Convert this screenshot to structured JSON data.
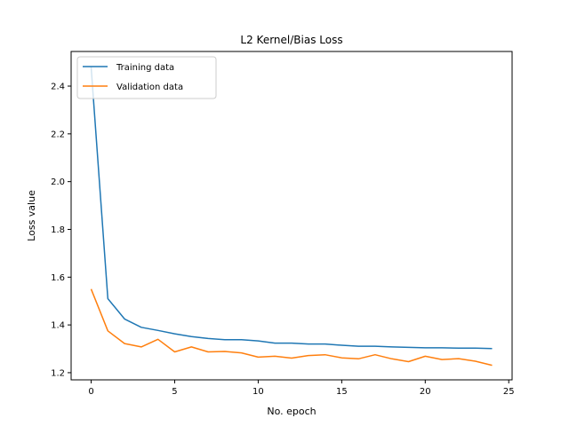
{
  "chart_data": {
    "type": "line",
    "title": "L2 Kernel/Bias Loss",
    "xlabel": "No. epoch",
    "ylabel": "Loss value",
    "xlim": [
      -1.2,
      25.2
    ],
    "ylim": [
      1.17,
      2.545
    ],
    "xticks": [
      0,
      5,
      10,
      15,
      20,
      25
    ],
    "yticks": [
      1.2,
      1.4,
      1.6,
      1.8,
      2.0,
      2.2,
      2.4
    ],
    "ytick_labels": [
      "1.2",
      "1.4",
      "1.6",
      "1.8",
      "2.0",
      "2.2",
      "2.4"
    ],
    "grid": false,
    "legend_position": "top-left",
    "x": [
      0,
      1,
      2,
      3,
      4,
      5,
      6,
      7,
      8,
      9,
      10,
      11,
      12,
      13,
      14,
      15,
      16,
      17,
      18,
      19,
      20,
      21,
      22,
      23,
      24
    ],
    "series": [
      {
        "name": "Training data",
        "color": "#1f77b4",
        "values": [
          2.48,
          1.51,
          1.425,
          1.39,
          1.377,
          1.363,
          1.351,
          1.343,
          1.338,
          1.338,
          1.333,
          1.324,
          1.324,
          1.32,
          1.32,
          1.315,
          1.311,
          1.311,
          1.308,
          1.306,
          1.304,
          1.304,
          1.303,
          1.303,
          1.301
        ]
      },
      {
        "name": "Validation data",
        "color": "#ff7f0e",
        "values": [
          1.55,
          1.375,
          1.322,
          1.308,
          1.34,
          1.287,
          1.308,
          1.287,
          1.289,
          1.283,
          1.265,
          1.269,
          1.261,
          1.272,
          1.275,
          1.262,
          1.258,
          1.275,
          1.258,
          1.246,
          1.269,
          1.255,
          1.259,
          1.248,
          1.231
        ]
      }
    ]
  }
}
